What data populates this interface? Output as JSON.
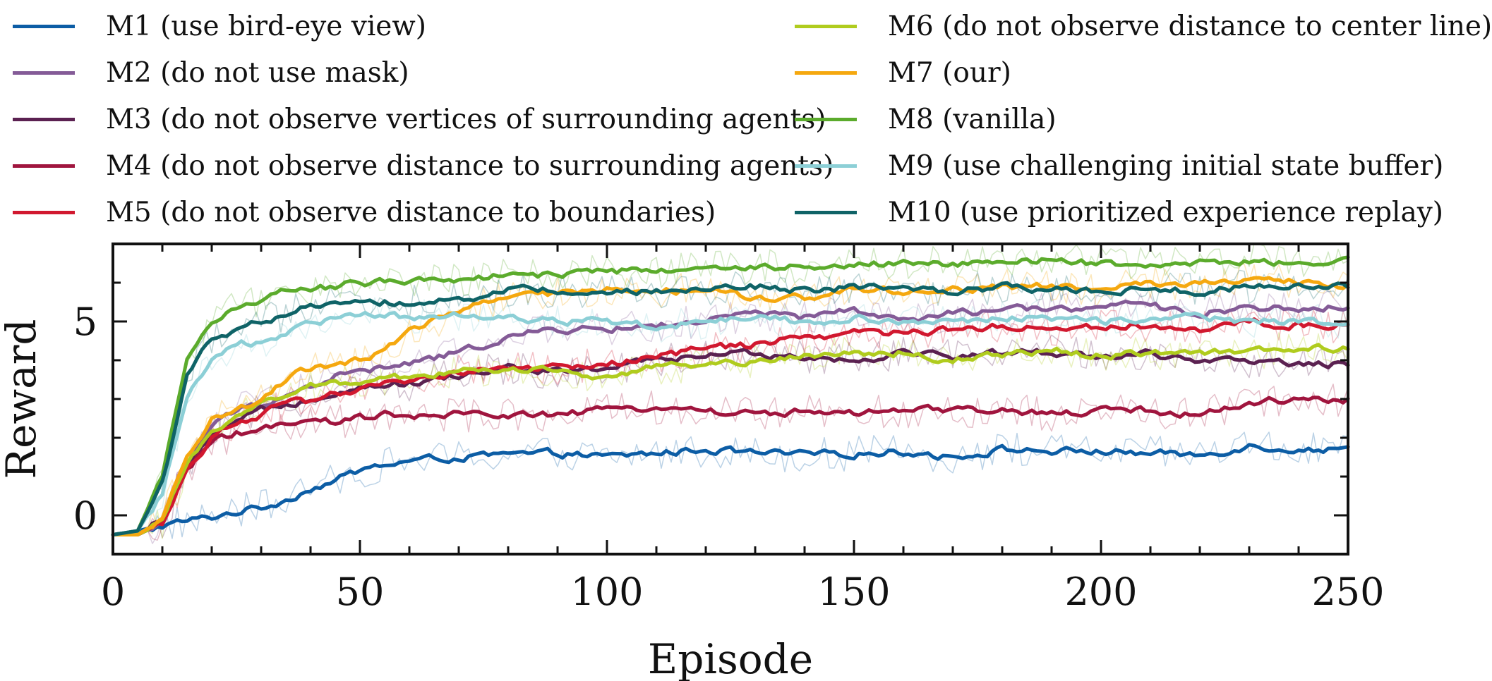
{
  "chart_data": {
    "type": "line",
    "xlabel": "Episode",
    "ylabel": "Reward",
    "xlim": [
      0,
      250
    ],
    "ylim": [
      -1,
      7
    ],
    "xticks": [
      0,
      50,
      100,
      150,
      200,
      250
    ],
    "yticks": [
      0,
      5
    ],
    "grid": false,
    "legend_placement": "top, two columns",
    "raw_traces_visible": true,
    "series": [
      {
        "name": "M1 (use bird-eye view)",
        "color": "#0C5DA5",
        "x": [
          0,
          5,
          10,
          15,
          20,
          25,
          30,
          35,
          40,
          45,
          50,
          55,
          60,
          70,
          80,
          90,
          100,
          110,
          120,
          130,
          140,
          150,
          160,
          170,
          180,
          190,
          200,
          210,
          220,
          230,
          240,
          250
        ],
        "y": [
          -0.5,
          -0.4,
          -0.25,
          -0.15,
          -0.05,
          0.1,
          0.2,
          0.4,
          0.7,
          0.9,
          1.15,
          1.3,
          1.4,
          1.5,
          1.55,
          1.6,
          1.5,
          1.6,
          1.7,
          1.6,
          1.55,
          1.6,
          1.65,
          1.5,
          1.7,
          1.65,
          1.65,
          1.6,
          1.55,
          1.8,
          1.7,
          1.7
        ]
      },
      {
        "name": "M2 (do not use mask)",
        "color": "#845B97",
        "x": [
          0,
          5,
          10,
          15,
          20,
          25,
          30,
          35,
          40,
          45,
          50,
          55,
          60,
          70,
          80,
          90,
          100,
          110,
          120,
          130,
          140,
          150,
          160,
          170,
          180,
          190,
          200,
          210,
          220,
          230,
          240,
          250
        ],
        "y": [
          -0.5,
          -0.5,
          -0.2,
          1.3,
          2.3,
          2.7,
          2.9,
          3.1,
          3.3,
          3.6,
          3.7,
          3.8,
          3.9,
          4.2,
          4.6,
          4.8,
          4.8,
          4.9,
          5.0,
          5.2,
          5.1,
          5.3,
          5.0,
          5.2,
          5.3,
          5.3,
          5.4,
          5.4,
          5.2,
          5.4,
          5.3,
          5.4
        ]
      },
      {
        "name": "M3 (do not observe vertices of surrounding agents)",
        "color": "#5B2151",
        "x": [
          0,
          5,
          10,
          15,
          20,
          25,
          30,
          35,
          40,
          45,
          50,
          55,
          60,
          70,
          80,
          90,
          100,
          110,
          120,
          130,
          140,
          150,
          160,
          170,
          180,
          190,
          200,
          210,
          220,
          230,
          240,
          250
        ],
        "y": [
          -0.5,
          -0.5,
          -0.2,
          1.2,
          2.0,
          2.4,
          2.7,
          2.9,
          3.0,
          3.2,
          3.3,
          3.4,
          3.4,
          3.6,
          3.8,
          3.7,
          3.8,
          4.0,
          4.1,
          4.2,
          4.1,
          4.0,
          4.2,
          4.1,
          4.2,
          4.2,
          4.1,
          4.2,
          3.9,
          4.0,
          3.9,
          3.9
        ]
      },
      {
        "name": "M4 (do not observe distance to surrounding agents)",
        "color": "#A0153E",
        "x": [
          0,
          5,
          10,
          15,
          20,
          25,
          30,
          35,
          40,
          45,
          50,
          55,
          60,
          70,
          80,
          90,
          100,
          110,
          120,
          130,
          140,
          150,
          160,
          170,
          180,
          190,
          200,
          210,
          220,
          230,
          240,
          250
        ],
        "y": [
          -0.5,
          -0.5,
          -0.2,
          1.2,
          1.9,
          2.1,
          2.2,
          2.3,
          2.4,
          2.4,
          2.5,
          2.6,
          2.5,
          2.6,
          2.6,
          2.6,
          2.7,
          2.8,
          2.7,
          2.6,
          2.7,
          2.6,
          2.7,
          2.7,
          2.7,
          2.6,
          2.7,
          2.7,
          2.6,
          2.9,
          3.0,
          3.0
        ]
      },
      {
        "name": "M5 (do not observe distance to boundaries)",
        "color": "#D1182F",
        "x": [
          0,
          5,
          10,
          15,
          20,
          25,
          30,
          35,
          40,
          45,
          50,
          55,
          60,
          70,
          80,
          90,
          100,
          110,
          120,
          130,
          140,
          150,
          160,
          170,
          180,
          190,
          200,
          210,
          220,
          230,
          240,
          250
        ],
        "y": [
          -0.5,
          -0.5,
          -0.2,
          1.2,
          2.0,
          2.4,
          2.6,
          2.9,
          2.9,
          3.1,
          3.2,
          3.4,
          3.5,
          3.7,
          3.8,
          3.8,
          3.9,
          4.1,
          4.3,
          4.4,
          4.6,
          4.7,
          4.7,
          4.8,
          4.9,
          4.8,
          4.9,
          4.9,
          4.8,
          5.0,
          4.9,
          4.9
        ]
      },
      {
        "name": "M6 (do not observe distance to center line)",
        "color": "#B0CC1E",
        "x": [
          0,
          5,
          10,
          15,
          20,
          25,
          30,
          35,
          40,
          45,
          50,
          55,
          60,
          70,
          80,
          90,
          100,
          110,
          120,
          130,
          140,
          150,
          160,
          170,
          180,
          190,
          200,
          210,
          220,
          230,
          240,
          250
        ],
        "y": [
          -0.5,
          -0.5,
          -0.2,
          1.3,
          2.2,
          2.6,
          2.9,
          3.1,
          3.3,
          3.4,
          3.5,
          3.5,
          3.6,
          3.7,
          3.8,
          3.7,
          3.6,
          3.8,
          3.9,
          4.0,
          4.1,
          4.2,
          4.2,
          4.0,
          4.1,
          4.3,
          4.1,
          4.2,
          4.2,
          4.2,
          4.3,
          4.3
        ]
      },
      {
        "name": "M7 (our)",
        "color": "#F5A80F",
        "x": [
          0,
          5,
          10,
          15,
          20,
          25,
          30,
          35,
          40,
          45,
          50,
          55,
          60,
          70,
          80,
          90,
          100,
          110,
          120,
          130,
          140,
          150,
          160,
          170,
          180,
          190,
          200,
          210,
          220,
          230,
          240,
          250
        ],
        "y": [
          -0.5,
          -0.5,
          -0.1,
          1.5,
          2.5,
          2.7,
          3.0,
          3.5,
          3.8,
          3.8,
          4.0,
          4.3,
          4.7,
          5.3,
          5.6,
          5.7,
          5.8,
          5.8,
          5.8,
          5.6,
          5.6,
          5.8,
          5.8,
          5.8,
          5.9,
          5.9,
          5.8,
          6.0,
          6.0,
          6.1,
          6.0,
          5.9
        ]
      },
      {
        "name": "M8 (vanilla)",
        "color": "#5BAB2C",
        "x": [
          0,
          5,
          10,
          15,
          20,
          25,
          30,
          35,
          40,
          45,
          50,
          55,
          60,
          70,
          80,
          90,
          100,
          110,
          120,
          130,
          140,
          150,
          160,
          170,
          180,
          190,
          200,
          210,
          220,
          230,
          240,
          250
        ],
        "y": [
          -0.5,
          -0.4,
          1.0,
          4.0,
          5.0,
          5.4,
          5.6,
          5.8,
          5.8,
          5.9,
          6.0,
          6.0,
          6.0,
          6.1,
          6.2,
          6.2,
          6.3,
          6.3,
          6.4,
          6.4,
          6.4,
          6.5,
          6.5,
          6.5,
          6.5,
          6.6,
          6.5,
          6.5,
          6.5,
          6.6,
          6.5,
          6.6
        ]
      },
      {
        "name": "M9 (use challenging initial state buffer)",
        "color": "#8CCFD6",
        "x": [
          0,
          5,
          10,
          15,
          20,
          25,
          30,
          35,
          40,
          45,
          50,
          55,
          60,
          70,
          80,
          90,
          100,
          110,
          120,
          130,
          140,
          150,
          160,
          170,
          180,
          190,
          200,
          210,
          220,
          230,
          240,
          250
        ],
        "y": [
          -0.5,
          -0.4,
          0.6,
          3.0,
          4.0,
          4.4,
          4.5,
          4.7,
          4.9,
          5.1,
          5.2,
          5.2,
          5.1,
          5.2,
          5.1,
          5.0,
          5.0,
          4.9,
          5.0,
          5.1,
          5.0,
          5.1,
          5.0,
          5.0,
          5.1,
          5.1,
          5.0,
          5.1,
          5.1,
          5.0,
          5.0,
          5.0
        ]
      },
      {
        "name": "M10 (use prioritized experience replay)",
        "color": "#0F6367",
        "x": [
          0,
          5,
          10,
          15,
          20,
          25,
          30,
          35,
          40,
          45,
          50,
          55,
          60,
          70,
          80,
          90,
          100,
          110,
          120,
          130,
          140,
          150,
          160,
          170,
          180,
          190,
          200,
          210,
          220,
          230,
          240,
          250
        ],
        "y": [
          -0.5,
          -0.4,
          0.8,
          3.6,
          4.6,
          4.8,
          5.0,
          5.2,
          5.4,
          5.5,
          5.5,
          5.5,
          5.5,
          5.6,
          5.8,
          5.8,
          5.8,
          5.8,
          5.8,
          5.9,
          5.8,
          5.9,
          5.9,
          5.8,
          5.9,
          5.8,
          5.8,
          5.8,
          5.8,
          5.9,
          5.9,
          5.9
        ]
      }
    ]
  }
}
